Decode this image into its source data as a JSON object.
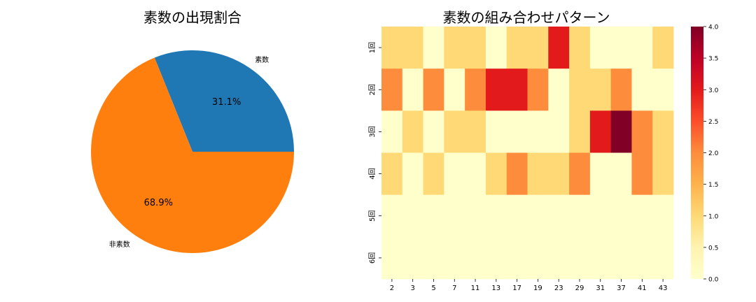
{
  "chart_data": [
    {
      "type": "pie",
      "title": "素数の出現割合",
      "labels": [
        "素数",
        "非素数"
      ],
      "values": [
        31.1,
        68.9
      ],
      "percent_labels": [
        "31.1%",
        "68.9%"
      ],
      "colors": [
        "#1f77b4",
        "#ff7f0e"
      ],
      "start_angle_deg": 0,
      "direction": "counterclockwise"
    },
    {
      "type": "heatmap",
      "title": "素数の組み合わせパターン",
      "x_tick_labels": [
        "2",
        "3",
        "5",
        "7",
        "11",
        "13",
        "17",
        "19",
        "23",
        "29",
        "31",
        "37",
        "41",
        "43"
      ],
      "y_tick_labels": [
        "1回",
        "2回",
        "3回",
        "4回",
        "5回",
        "6回"
      ],
      "values": [
        [
          1,
          1,
          0,
          1,
          1,
          0,
          1,
          1,
          3,
          1,
          0,
          0,
          0,
          1
        ],
        [
          2,
          0,
          2,
          0,
          2,
          3,
          3,
          2,
          0,
          1,
          1,
          2,
          0,
          0
        ],
        [
          0,
          1,
          0,
          1,
          1,
          0,
          0,
          0,
          0,
          1,
          3,
          4,
          2,
          1
        ],
        [
          1,
          0,
          1,
          0,
          0,
          1,
          2,
          1,
          1,
          2,
          0,
          0,
          2,
          1
        ],
        [
          0,
          0,
          0,
          0,
          0,
          0,
          0,
          0,
          0,
          0,
          0,
          0,
          0,
          0
        ],
        [
          0,
          0,
          0,
          0,
          0,
          0,
          0,
          0,
          0,
          0,
          0,
          0,
          0,
          0
        ]
      ],
      "colormap": "YlOrRd",
      "vmin": 0,
      "vmax": 4,
      "colorbar_ticks": [
        "0.0",
        "0.5",
        "1.0",
        "1.5",
        "2.0",
        "2.5",
        "3.0",
        "3.5",
        "4.0"
      ]
    }
  ]
}
